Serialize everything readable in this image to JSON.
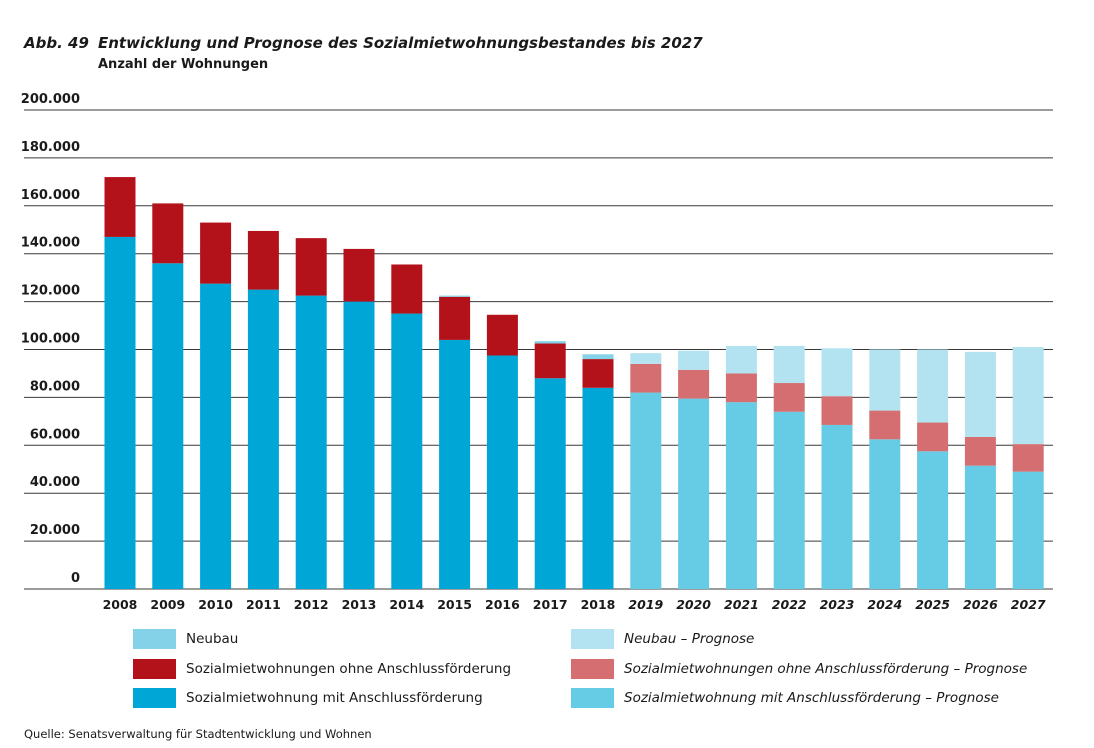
{
  "figure": {
    "number": "Abb. 49",
    "title": "Entwicklung und Prognose des Sozialmietwohnungsbestandes bis 2027",
    "subtitle": "Anzahl der Wohnungen",
    "source": "Quelle: Senatsverwaltung für Stadtentwicklung und Wohnen"
  },
  "colors": {
    "neubau": "#84d2e8",
    "ohne": "#b3121b",
    "mit": "#00a6d6",
    "neubau_prognose": "#b3e3f1",
    "ohne_prognose": "#d46e70",
    "mit_prognose": "#66cbe4",
    "gridline": "#3a3a3a"
  },
  "legend": [
    {
      "key": "neubau",
      "label": "Neubau"
    },
    {
      "key": "ohne",
      "label": "Sozialmietwohnungen ohne Anschlussförderung"
    },
    {
      "key": "mit",
      "label": "Sozialmietwohnung mit Anschlussförderung"
    },
    {
      "key": "neubau_prognose",
      "label": "Neubau – Prognose"
    },
    {
      "key": "ohne_prognose",
      "label": "Sozialmietwohnungen ohne Anschlussförderung – Prognose"
    },
    {
      "key": "mit_prognose",
      "label": "Sozialmietwohnung mit Anschlussförderung – Prognose"
    }
  ],
  "chart_data": {
    "type": "bar",
    "stacked": true,
    "title": "Entwicklung und Prognose des Sozialmietwohnungsbestandes bis 2027",
    "ylabel": "Anzahl der Wohnungen",
    "ylim": [
      0,
      200000
    ],
    "yticks": [
      0,
      20000,
      40000,
      60000,
      80000,
      100000,
      120000,
      140000,
      160000,
      180000,
      200000
    ],
    "ytick_labels": [
      "0",
      "20.000",
      "40.000",
      "60.000",
      "80.000",
      "100.000",
      "120.000",
      "140.000",
      "160.000",
      "180.000",
      "200.000"
    ],
    "categories": [
      "2008",
      "2009",
      "2010",
      "2011",
      "2012",
      "2013",
      "2014",
      "2015",
      "2016",
      "2017",
      "2018",
      "2019",
      "2020",
      "2021",
      "2022",
      "2023",
      "2024",
      "2025",
      "2026",
      "2027"
    ],
    "forecast_from_index": 11,
    "series": [
      {
        "name": "Sozialmietwohnung mit Anschlussförderung",
        "values": [
          147000,
          136000,
          127500,
          125000,
          122500,
          120000,
          115000,
          104000,
          97500,
          88000,
          84000,
          82000,
          79500,
          78000,
          74000,
          68500,
          62500,
          57500,
          51500,
          49000
        ]
      },
      {
        "name": "Sozialmietwohnungen ohne Anschlussförderung",
        "values": [
          25000,
          25000,
          25500,
          24500,
          24000,
          22000,
          20500,
          18000,
          17000,
          14500,
          12000,
          12000,
          12000,
          12000,
          12000,
          12000,
          12000,
          12000,
          12000,
          11500
        ]
      },
      {
        "name": "Neubau",
        "values": [
          0,
          0,
          0,
          0,
          0,
          0,
          0,
          500,
          0,
          1000,
          2000,
          4500,
          8000,
          11500,
          15500,
          20000,
          25500,
          30500,
          35500,
          40500
        ]
      }
    ]
  }
}
